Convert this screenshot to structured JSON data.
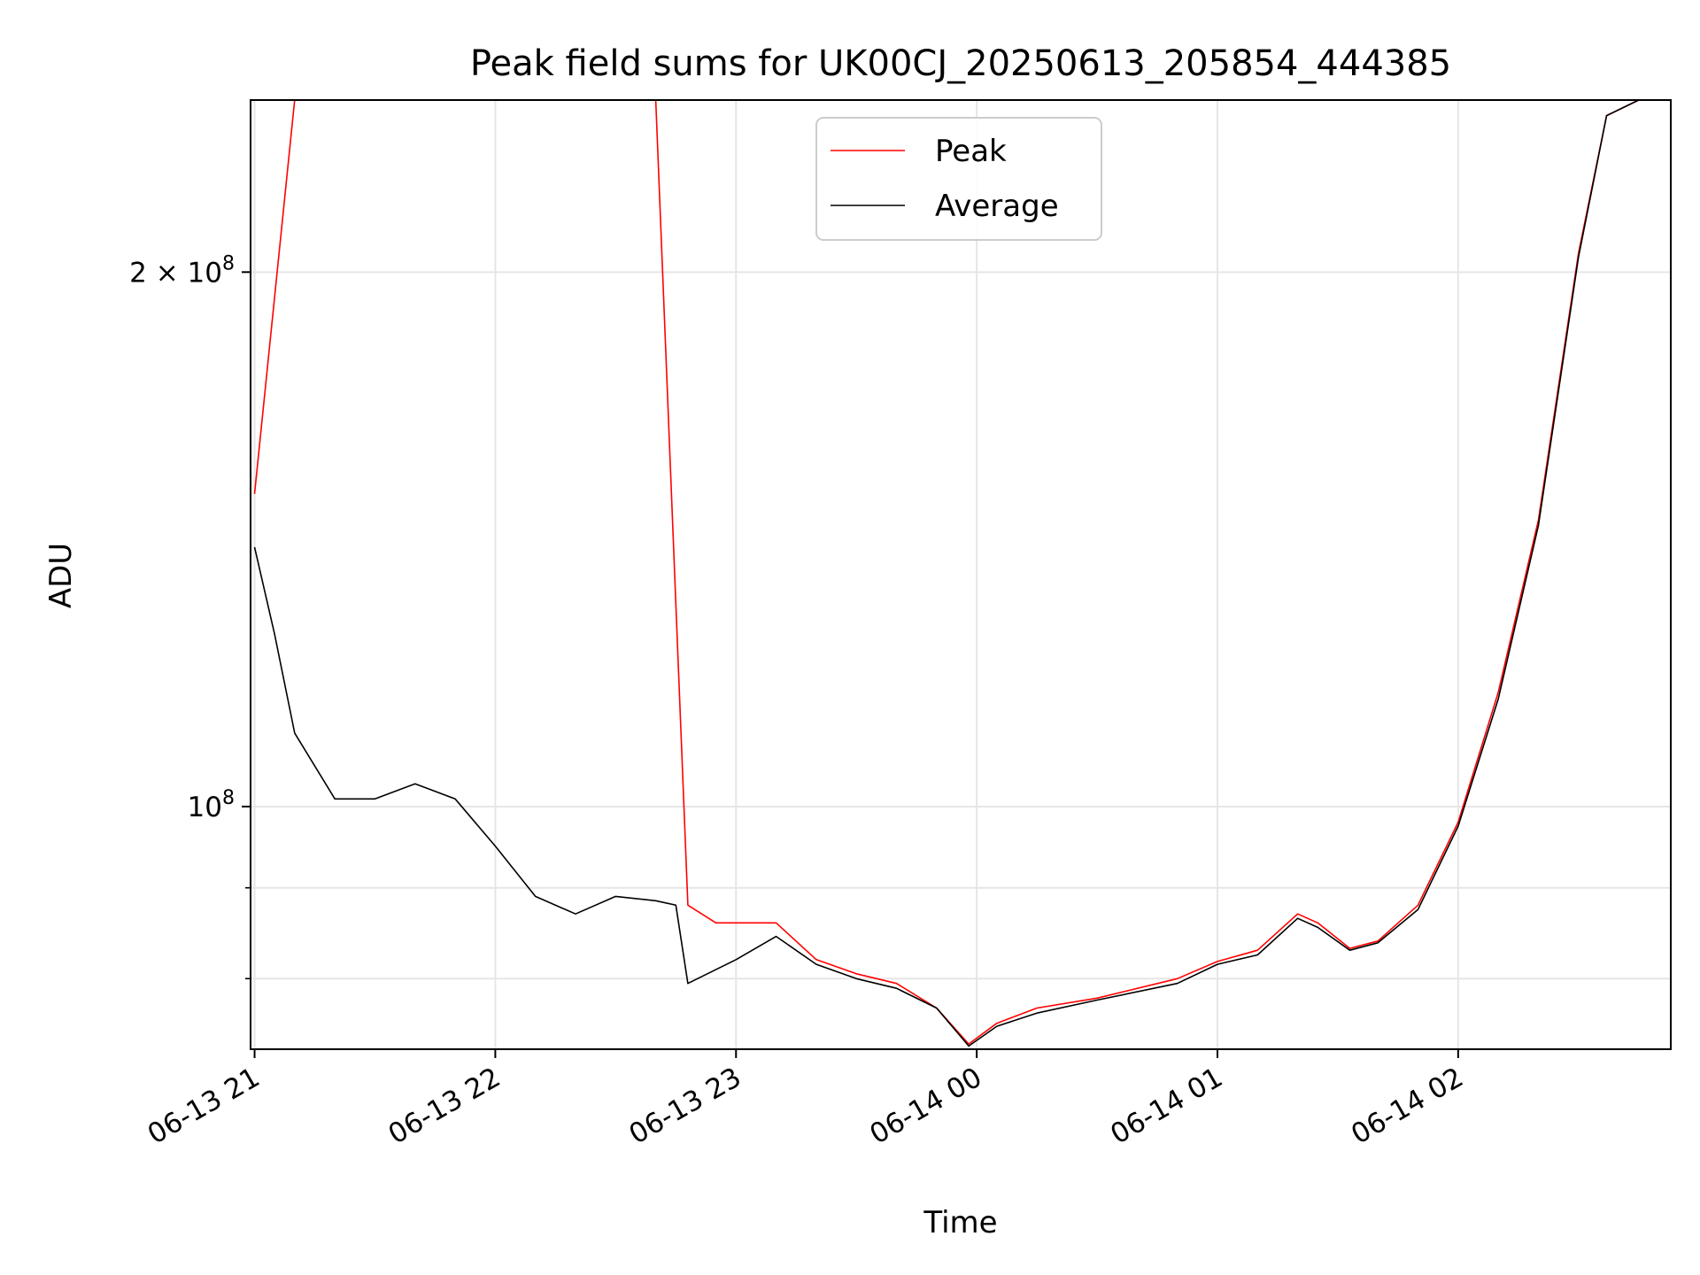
{
  "chart_data": {
    "type": "line",
    "title": "Peak field sums for UK00CJ_20250613_205854_444385",
    "xlabel": "Time",
    "ylabel": "ADU",
    "y_scale": "log",
    "xlim": [
      "2025-06-13T20:59:00",
      "2025-06-14T02:53:00"
    ],
    "ylim": [
      73000000,
      250000000
    ],
    "x_ticks": [
      {
        "value": "2025-06-13T21:00:00",
        "label": "06-13 21"
      },
      {
        "value": "2025-06-13T22:00:00",
        "label": "06-13 22"
      },
      {
        "value": "2025-06-13T23:00:00",
        "label": "06-13 23"
      },
      {
        "value": "2025-06-14T00:00:00",
        "label": "06-14 00"
      },
      {
        "value": "2025-06-14T01:00:00",
        "label": "06-14 01"
      },
      {
        "value": "2025-06-14T02:00:00",
        "label": "06-14 02"
      }
    ],
    "y_ticks_major": [
      {
        "value": 100000000,
        "label_base": "10",
        "label_exp": "8",
        "label_prefix": ""
      },
      {
        "value": 200000000,
        "label_base": "10",
        "label_exp": "8",
        "label_prefix": "2 × "
      }
    ],
    "y_ticks_minor": [
      80000000,
      90000000
    ],
    "grid": true,
    "legend": {
      "placement": "upper-center"
    },
    "series": [
      {
        "name": "Peak",
        "color": "#ff0000",
        "points": [
          [
            "2025-06-13T21:00:00",
            150000000
          ],
          [
            "2025-06-13T21:10:00",
            250000000
          ],
          [
            "2025-06-13T21:20:00",
            250000000
          ],
          [
            "2025-06-13T21:30:00",
            250000000
          ],
          [
            "2025-06-13T21:40:00",
            250000000
          ],
          [
            "2025-06-13T21:50:00",
            250000000
          ],
          [
            "2025-06-13T22:00:00",
            250000000
          ],
          [
            "2025-06-13T22:10:00",
            250000000
          ],
          [
            "2025-06-13T22:20:00",
            250000000
          ],
          [
            "2025-06-13T22:30:00",
            250000000
          ],
          [
            "2025-06-13T22:40:00",
            250000000
          ],
          [
            "2025-06-13T22:48:00",
            88000000
          ],
          [
            "2025-06-13T22:55:00",
            86000000
          ],
          [
            "2025-06-13T23:10:00",
            86000000
          ],
          [
            "2025-06-13T23:20:00",
            82000000
          ],
          [
            "2025-06-13T23:30:00",
            80500000
          ],
          [
            "2025-06-13T23:40:00",
            79500000
          ],
          [
            "2025-06-13T23:50:00",
            77000000
          ],
          [
            "2025-06-13T23:58:00",
            73500000
          ],
          [
            "2025-06-14T00:05:00",
            75500000
          ],
          [
            "2025-06-14T00:15:00",
            77000000
          ],
          [
            "2025-06-14T00:30:00",
            78000000
          ],
          [
            "2025-06-14T00:50:00",
            80000000
          ],
          [
            "2025-06-14T01:00:00",
            81800000
          ],
          [
            "2025-06-14T01:10:00",
            83000000
          ],
          [
            "2025-06-14T01:20:00",
            87000000
          ],
          [
            "2025-06-14T01:25:00",
            86000000
          ],
          [
            "2025-06-14T01:33:00",
            83200000
          ],
          [
            "2025-06-14T01:40:00",
            84000000
          ],
          [
            "2025-06-14T01:50:00",
            88000000
          ],
          [
            "2025-06-14T02:00:00",
            98000000
          ],
          [
            "2025-06-14T02:10:00",
            116000000
          ],
          [
            "2025-06-14T02:20:00",
            145000000
          ],
          [
            "2025-06-14T02:30:00",
            205000000
          ],
          [
            "2025-06-14T02:37:00",
            245000000
          ],
          [
            "2025-06-14T02:45:00",
            250000000
          ]
        ]
      },
      {
        "name": "Average",
        "color": "#000000",
        "points": [
          [
            "2025-06-13T21:00:00",
            140000000
          ],
          [
            "2025-06-13T21:05:00",
            125000000
          ],
          [
            "2025-06-13T21:10:00",
            110000000
          ],
          [
            "2025-06-13T21:20:00",
            101000000
          ],
          [
            "2025-06-13T21:30:00",
            101000000
          ],
          [
            "2025-06-13T21:40:00",
            103000000
          ],
          [
            "2025-06-13T21:50:00",
            101000000
          ],
          [
            "2025-06-13T22:00:00",
            95000000
          ],
          [
            "2025-06-13T22:10:00",
            89000000
          ],
          [
            "2025-06-13T22:20:00",
            87000000
          ],
          [
            "2025-06-13T22:30:00",
            89000000
          ],
          [
            "2025-06-13T22:40:00",
            88500000
          ],
          [
            "2025-06-13T22:45:00",
            88000000
          ],
          [
            "2025-06-13T22:48:00",
            79500000
          ],
          [
            "2025-06-13T23:00:00",
            82000000
          ],
          [
            "2025-06-13T23:10:00",
            84500000
          ],
          [
            "2025-06-13T23:20:00",
            81500000
          ],
          [
            "2025-06-13T23:30:00",
            80000000
          ],
          [
            "2025-06-13T23:40:00",
            79000000
          ],
          [
            "2025-06-13T23:50:00",
            77000000
          ],
          [
            "2025-06-13T23:58:00",
            73300000
          ],
          [
            "2025-06-14T00:05:00",
            75200000
          ],
          [
            "2025-06-14T00:15:00",
            76500000
          ],
          [
            "2025-06-14T00:30:00",
            77800000
          ],
          [
            "2025-06-14T00:50:00",
            79500000
          ],
          [
            "2025-06-14T01:00:00",
            81500000
          ],
          [
            "2025-06-14T01:10:00",
            82500000
          ],
          [
            "2025-06-14T01:20:00",
            86500000
          ],
          [
            "2025-06-14T01:25:00",
            85500000
          ],
          [
            "2025-06-14T01:33:00",
            83000000
          ],
          [
            "2025-06-14T01:40:00",
            83800000
          ],
          [
            "2025-06-14T01:50:00",
            87500000
          ],
          [
            "2025-06-14T02:00:00",
            97500000
          ],
          [
            "2025-06-14T02:10:00",
            115000000
          ],
          [
            "2025-06-14T02:20:00",
            144000000
          ],
          [
            "2025-06-14T02:30:00",
            204000000
          ],
          [
            "2025-06-14T02:37:00",
            245000000
          ],
          [
            "2025-06-14T02:45:00",
            250000000
          ]
        ]
      }
    ]
  }
}
